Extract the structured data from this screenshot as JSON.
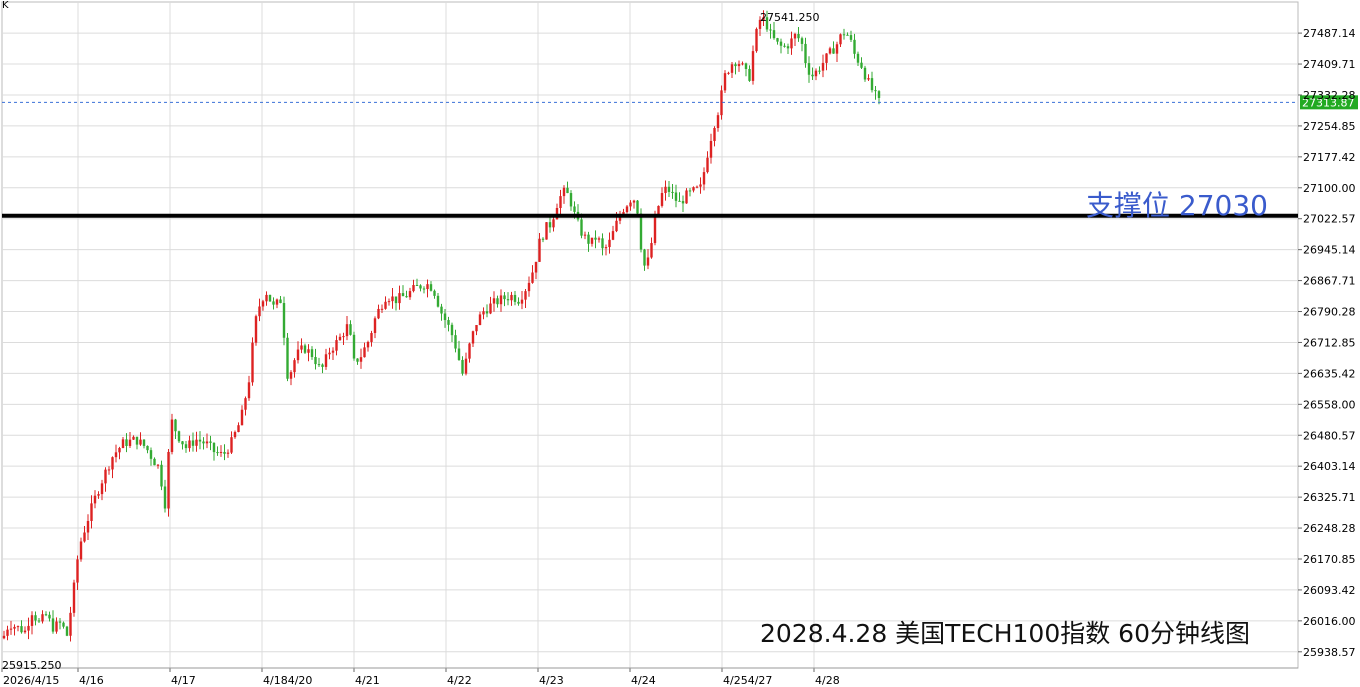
{
  "chart_data": {
    "type": "candlestick",
    "title": "2028.4.28 美国TECH100指数 60分钟线图",
    "corner_label": "K",
    "y_ticks": [
      "27487.14",
      "27409.71",
      "27332.28",
      "27254.85",
      "27177.42",
      "27100.00",
      "27022.57",
      "26945.14",
      "26867.71",
      "26790.28",
      "26712.85",
      "26635.42",
      "26558.00",
      "26480.57",
      "26403.14",
      "26325.71",
      "26248.28",
      "26170.85",
      "26093.42",
      "26016.00",
      "25938.57"
    ],
    "ylim": [
      25900,
      27560
    ],
    "x_labels": [
      "2026/4/15",
      "4/16",
      "4/17",
      "4/184/20",
      "4/21",
      "4/22",
      "4/23",
      "4/24",
      "4/254/27",
      "4/28"
    ],
    "current_price": {
      "value": 27313.87,
      "label": "27313.87"
    },
    "high_annotation": {
      "value": 27541.25,
      "label": "27541.250"
    },
    "low_annotation": {
      "value": 25915.25,
      "label": "25915.250"
    },
    "support": {
      "value": 27030,
      "label": "支撑位 27030"
    },
    "grid": true,
    "colors": {
      "up": "#dd2222",
      "down": "#33aa33",
      "support_line": "#000000",
      "price_line": "#3a70d8",
      "price_tag": "#22aa22",
      "support_text": "#3a5bcc",
      "grid": "#dcdcdc"
    },
    "close_anchors": [
      [
        0,
        25960
      ],
      [
        8,
        26010
      ],
      [
        16,
        26000
      ],
      [
        24,
        25990
      ],
      [
        31,
        26040
      ],
      [
        38,
        26010
      ],
      [
        45,
        26030
      ],
      [
        52,
        26000
      ],
      [
        60,
        26010
      ],
      [
        66,
        25980
      ],
      [
        72,
        26080
      ],
      [
        78,
        26200
      ],
      [
        88,
        26280
      ],
      [
        95,
        26330
      ],
      [
        103,
        26380
      ],
      [
        112,
        26430
      ],
      [
        122,
        26460
      ],
      [
        135,
        26470
      ],
      [
        145,
        26450
      ],
      [
        152,
        26420
      ],
      [
        158,
        26400
      ],
      [
        164,
        26310
      ],
      [
        170,
        26520
      ],
      [
        177,
        26480
      ],
      [
        185,
        26450
      ],
      [
        195,
        26470
      ],
      [
        205,
        26460
      ],
      [
        213,
        26440
      ],
      [
        222,
        26430
      ],
      [
        230,
        26460
      ],
      [
        240,
        26520
      ],
      [
        248,
        26620
      ],
      [
        254,
        26760
      ],
      [
        260,
        26820
      ],
      [
        266,
        26840
      ],
      [
        272,
        26800
      ],
      [
        280,
        26820
      ],
      [
        287,
        26620
      ],
      [
        295,
        26680
      ],
      [
        303,
        26700
      ],
      [
        312,
        26680
      ],
      [
        320,
        26640
      ],
      [
        328,
        26690
      ],
      [
        338,
        26720
      ],
      [
        348,
        26760
      ],
      [
        352,
        26660
      ],
      [
        360,
        26680
      ],
      [
        368,
        26720
      ],
      [
        375,
        26780
      ],
      [
        385,
        26830
      ],
      [
        395,
        26820
      ],
      [
        405,
        26830
      ],
      [
        415,
        26850
      ],
      [
        425,
        26860
      ],
      [
        432,
        26850
      ],
      [
        440,
        26790
      ],
      [
        450,
        26740
      ],
      [
        455,
        26700
      ],
      [
        462,
        26630
      ],
      [
        468,
        26700
      ],
      [
        475,
        26760
      ],
      [
        482,
        26790
      ],
      [
        492,
        26810
      ],
      [
        500,
        26820
      ],
      [
        510,
        26830
      ],
      [
        518,
        26820
      ],
      [
        525,
        26850
      ],
      [
        533,
        26900
      ],
      [
        538,
        26960
      ],
      [
        545,
        27000
      ],
      [
        550,
        27010
      ],
      [
        556,
        27060
      ],
      [
        562,
        27090
      ],
      [
        568,
        27080
      ],
      [
        575,
        27020
      ],
      [
        582,
        26980
      ],
      [
        590,
        26960
      ],
      [
        596,
        26980
      ],
      [
        602,
        26940
      ],
      [
        608,
        26960
      ],
      [
        614,
        27000
      ],
      [
        620,
        27040
      ],
      [
        626,
        27060
      ],
      [
        632,
        27080
      ],
      [
        637,
        27040
      ],
      [
        642,
        26900
      ],
      [
        648,
        26920
      ],
      [
        654,
        27020
      ],
      [
        660,
        27080
      ],
      [
        666,
        27100
      ],
      [
        672,
        27080
      ],
      [
        678,
        27060
      ],
      [
        685,
        27080
      ],
      [
        692,
        27090
      ],
      [
        700,
        27100
      ],
      [
        706,
        27180
      ],
      [
        712,
        27250
      ],
      [
        718,
        27300
      ],
      [
        724,
        27380
      ],
      [
        730,
        27410
      ],
      [
        736,
        27420
      ],
      [
        742,
        27400
      ],
      [
        748,
        27370
      ],
      [
        752,
        27440
      ],
      [
        758,
        27520
      ],
      [
        764,
        27520
      ],
      [
        770,
        27480
      ],
      [
        776,
        27460
      ],
      [
        782,
        27450
      ],
      [
        788,
        27460
      ],
      [
        794,
        27480
      ],
      [
        800,
        27470
      ],
      [
        806,
        27400
      ],
      [
        812,
        27380
      ],
      [
        818,
        27400
      ],
      [
        824,
        27420
      ],
      [
        830,
        27440
      ],
      [
        836,
        27460
      ],
      [
        842,
        27490
      ],
      [
        848,
        27480
      ],
      [
        854,
        27430
      ],
      [
        860,
        27410
      ],
      [
        866,
        27370
      ],
      [
        872,
        27340
      ],
      [
        878,
        27314
      ]
    ]
  }
}
